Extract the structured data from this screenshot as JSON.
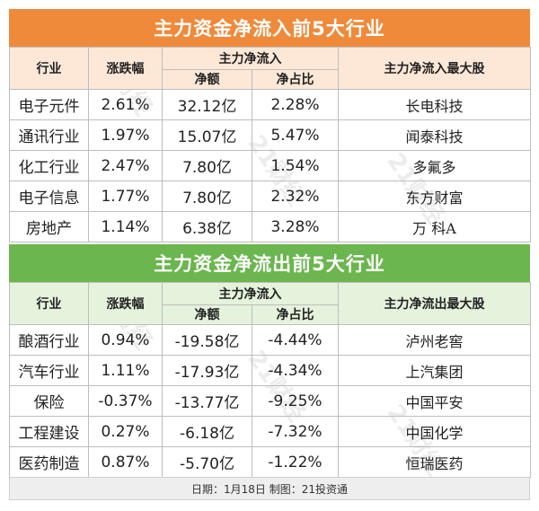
{
  "inflow": {
    "title": "主力资金净流入前5大行业",
    "headers": {
      "sector": "行业",
      "change": "涨跌幅",
      "group": "主力净流入",
      "net": "净额",
      "ratio": "净占比",
      "top": "主力净流入最大股"
    },
    "rows": [
      {
        "sector": "电子元件",
        "change": "2.61%",
        "net": "32.12亿",
        "ratio": "2.28%",
        "top": "长电科技"
      },
      {
        "sector": "通讯行业",
        "change": "1.97%",
        "net": "15.07亿",
        "ratio": "5.47%",
        "top": "闻泰科技"
      },
      {
        "sector": "化工行业",
        "change": "2.47%",
        "net": "7.80亿",
        "ratio": "1.54%",
        "top": "多氟多"
      },
      {
        "sector": "电子信息",
        "change": "1.77%",
        "net": "7.80亿",
        "ratio": "2.32%",
        "top": "东方财富"
      },
      {
        "sector": "房地产",
        "change": "1.14%",
        "net": "6.38亿",
        "ratio": "3.28%",
        "top": "万 科A"
      }
    ]
  },
  "outflow": {
    "title": "主力资金净流出前5大行业",
    "headers": {
      "sector": "行业",
      "change": "涨跌幅",
      "group": "主力净流入",
      "net": "净额",
      "ratio": "净占比",
      "top": "主力净流出最大股"
    },
    "rows": [
      {
        "sector": "酿酒行业",
        "change": "0.94%",
        "net": "-19.58亿",
        "ratio": "-4.44%",
        "top": "泸州老窖"
      },
      {
        "sector": "汽车行业",
        "change": "1.11%",
        "net": "-17.93亿",
        "ratio": "-4.34%",
        "top": "上汽集团"
      },
      {
        "sector": "保险",
        "change": "-0.37%",
        "net": "-13.77亿",
        "ratio": "-9.25%",
        "top": "中国平安"
      },
      {
        "sector": "工程建设",
        "change": "0.27%",
        "net": "-6.18亿",
        "ratio": "-7.32%",
        "top": "中国化学"
      },
      {
        "sector": "医药制造",
        "change": "0.87%",
        "net": "-5.70亿",
        "ratio": "-1.22%",
        "top": "恒瑞医药"
      }
    ]
  },
  "footer": "日期：1月18日 制图：21投资通",
  "watermark": "21财经",
  "colors": {
    "inflow_banner": "#ef8a3b",
    "inflow_header_bg": "#fde8d8",
    "outflow_banner": "#6bb64e",
    "outflow_header_bg": "#e5f2dc"
  }
}
